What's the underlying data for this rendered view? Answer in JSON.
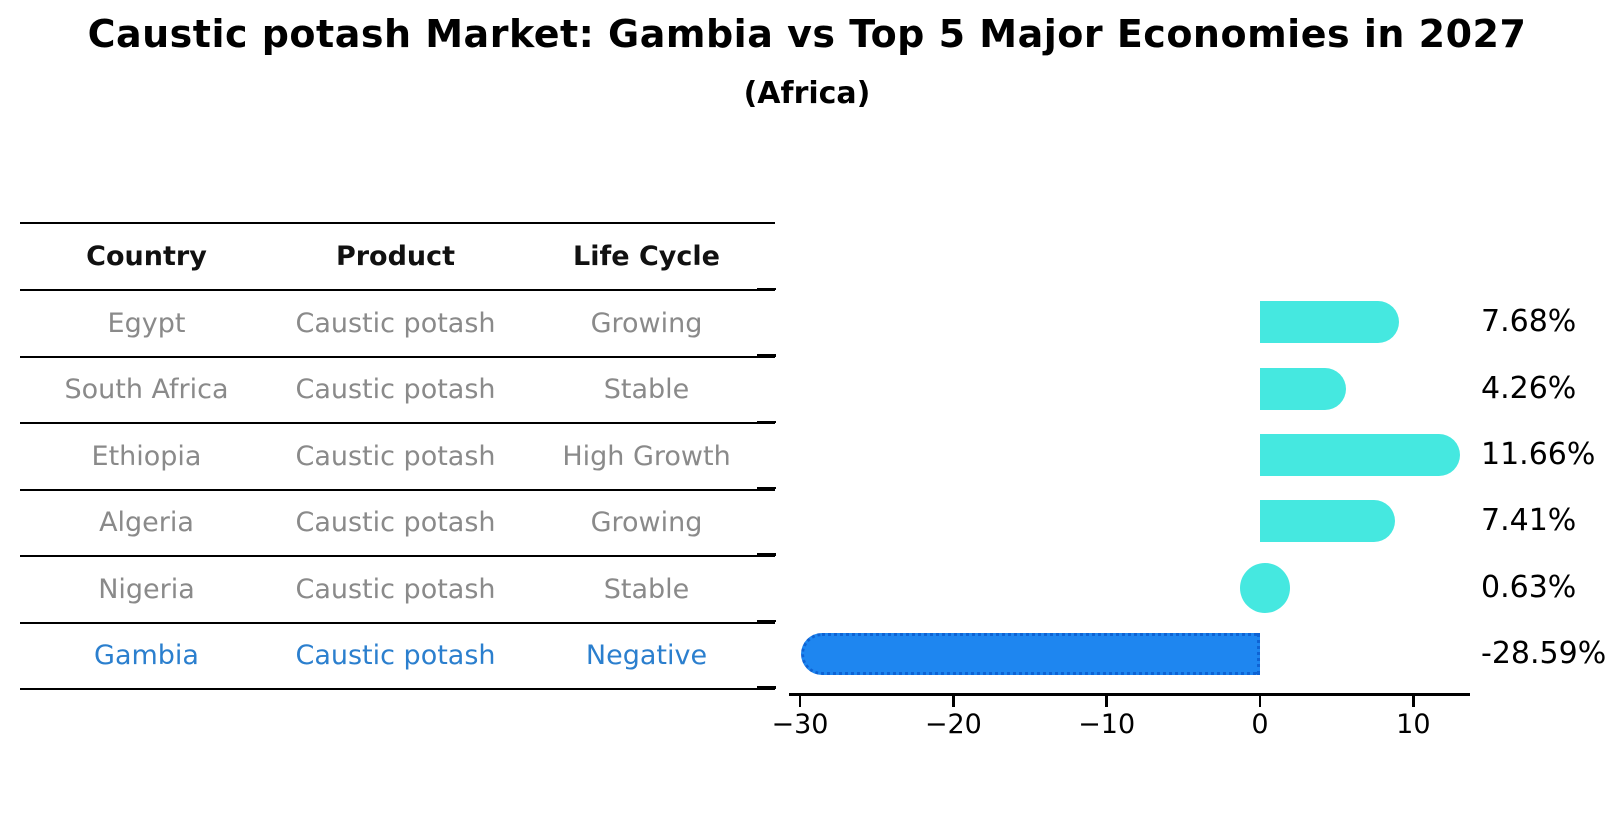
{
  "title": "Caustic potash Market: Gambia vs Top 5 Major Economies in 2027",
  "subtitle": "(Africa)",
  "table": {
    "columns": [
      "Country",
      "Product",
      "Life Cycle"
    ],
    "rows": [
      {
        "country": "Egypt",
        "product": "Caustic potash",
        "life_cycle": "Growing",
        "highlight": false
      },
      {
        "country": "South Africa",
        "product": "Caustic potash",
        "life_cycle": "Stable",
        "highlight": false
      },
      {
        "country": "Ethiopia",
        "product": "Caustic potash",
        "life_cycle": "High Growth",
        "highlight": false
      },
      {
        "country": "Algeria",
        "product": "Caustic potash",
        "life_cycle": "Growing",
        "highlight": false
      },
      {
        "country": "Nigeria",
        "product": "Caustic potash",
        "life_cycle": "Stable",
        "highlight": false
      },
      {
        "country": "Gambia",
        "product": "Caustic potash",
        "life_cycle": "Negative",
        "highlight": true
      }
    ]
  },
  "chart_data": {
    "type": "bar",
    "orientation": "horizontal",
    "title": "Caustic potash Market: Gambia vs Top 5 Major Economies in 2027 (Africa)",
    "categories": [
      "Egypt",
      "South Africa",
      "Ethiopia",
      "Algeria",
      "Nigeria",
      "Gambia"
    ],
    "values": [
      7.68,
      4.26,
      11.66,
      7.41,
      0.63,
      -28.59
    ],
    "bar_labels": [
      "7.68%",
      "4.26%",
      "11.66%",
      "7.41%",
      "0.63%",
      "-28.59%"
    ],
    "highlight_category": "Gambia",
    "x_ticks": [
      {
        "label": "−30",
        "value": -30
      },
      {
        "label": "−20",
        "value": -20
      },
      {
        "label": "−10",
        "value": -10
      },
      {
        "label": "0",
        "value": 0
      },
      {
        "label": "10",
        "value": 10
      }
    ],
    "xlim": [
      -30.7,
      13.7
    ],
    "grid": false,
    "legend": null,
    "colors": {
      "positive_bar": "#45E8E0",
      "negative_bar": "#1E86F0",
      "negative_bar_border": "#0E63D4",
      "axis": "#000000",
      "label_text": "#000000",
      "table_text": "#8a8a8a",
      "highlight_text": "#2b7fce"
    }
  }
}
